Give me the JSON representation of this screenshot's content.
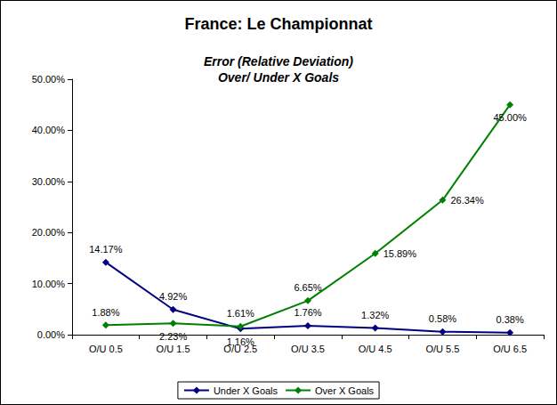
{
  "chart_data": {
    "type": "line",
    "title": "France: Le Championnat",
    "subtitle": [
      "Error (Relative Deviation)",
      "Over/ Under X Goals"
    ],
    "categories": [
      "O/U 0.5",
      "O/U 1.5",
      "O/U 2.5",
      "O/U 3.5",
      "O/U 4.5",
      "O/U 5.5",
      "O/U 6.5"
    ],
    "series": [
      {
        "name": "Under X Goals",
        "color": "#000080",
        "marker": "diamond",
        "line_style": "solid",
        "values": [
          14.17,
          4.92,
          1.16,
          1.76,
          1.32,
          0.58,
          0.38
        ],
        "value_labels": [
          "14.17%",
          "4.92%",
          "1.16%",
          "1.76%",
          "1.32%",
          "0.58%",
          "0.38%"
        ]
      },
      {
        "name": "Over X Goals",
        "color": "#008000",
        "marker": "diamond",
        "line_style": "solid",
        "values": [
          1.88,
          2.23,
          1.61,
          6.65,
          15.89,
          26.34,
          45.0
        ],
        "value_labels": [
          "1.88%",
          "2.23%",
          "1.61%",
          "6.65%",
          "15.89%",
          "26.34%",
          "45.00%"
        ]
      }
    ],
    "ylim": [
      0,
      50
    ],
    "yticks": [
      {
        "value": 0,
        "label": "0.00%"
      },
      {
        "value": 10,
        "label": "10.00%"
      },
      {
        "value": 20,
        "label": "20.00%"
      },
      {
        "value": 30,
        "label": "30.00%"
      },
      {
        "value": 40,
        "label": "40.00%"
      },
      {
        "value": 50,
        "label": "50.00%"
      }
    ],
    "grid": false,
    "legend": "bottom",
    "data_labels": true
  }
}
